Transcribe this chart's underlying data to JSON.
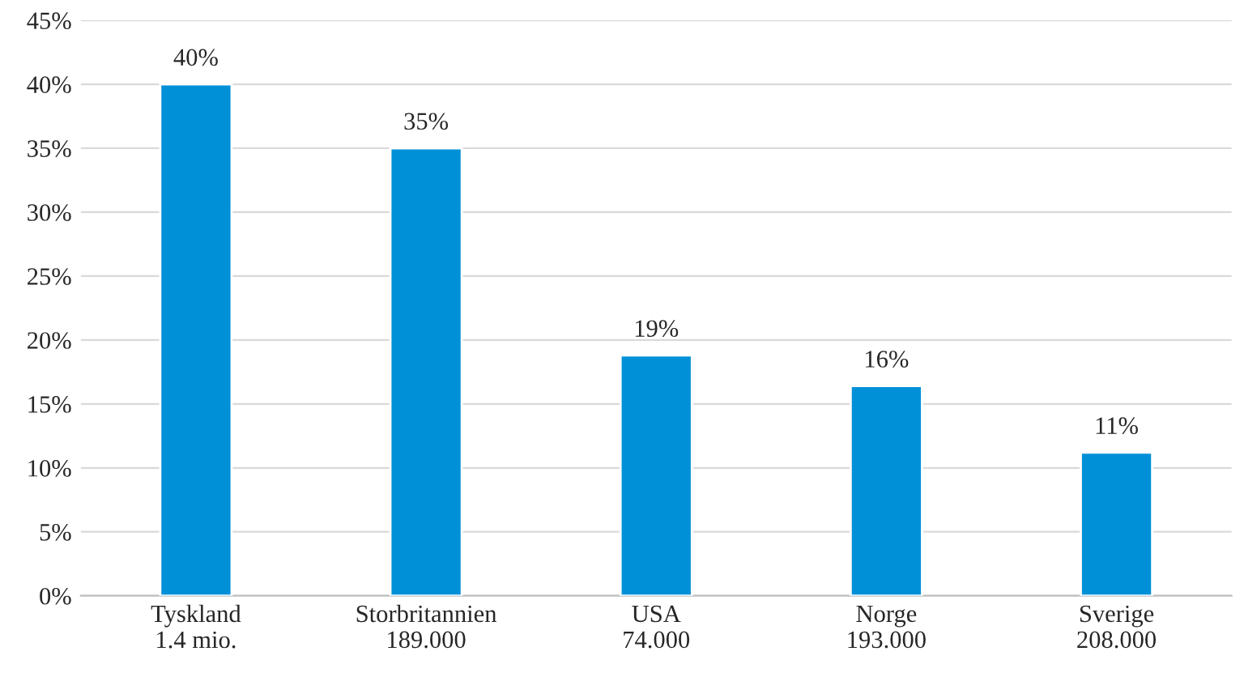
{
  "chart_data": {
    "type": "bar",
    "categories": [
      "Tyskland\n1.4 mio.",
      "Storbritannien\n189.000",
      "USA\n74.000",
      "Norge\n193.000",
      "Sverige\n208.000"
    ],
    "values": [
      40,
      35,
      18.8,
      16.4,
      11.2
    ],
    "color": "#0090d8",
    "value_labels": [
      "40%",
      "35%",
      "19%",
      "16%",
      "11%"
    ],
    "ylim": [
      0,
      45
    ],
    "yticks": [
      {
        "value": 0,
        "label": "0%"
      },
      {
        "value": 5,
        "label": "5%"
      },
      {
        "value": 10,
        "label": "10%"
      },
      {
        "value": 15,
        "label": "15%"
      },
      {
        "value": 20,
        "label": "20%"
      },
      {
        "value": 25,
        "label": "25%"
      },
      {
        "value": 30,
        "label": "30%"
      },
      {
        "value": 35,
        "label": "35%"
      },
      {
        "value": 40,
        "label": "40%"
      },
      {
        "value": 45,
        "label": "45%"
      }
    ],
    "grid": "y"
  }
}
